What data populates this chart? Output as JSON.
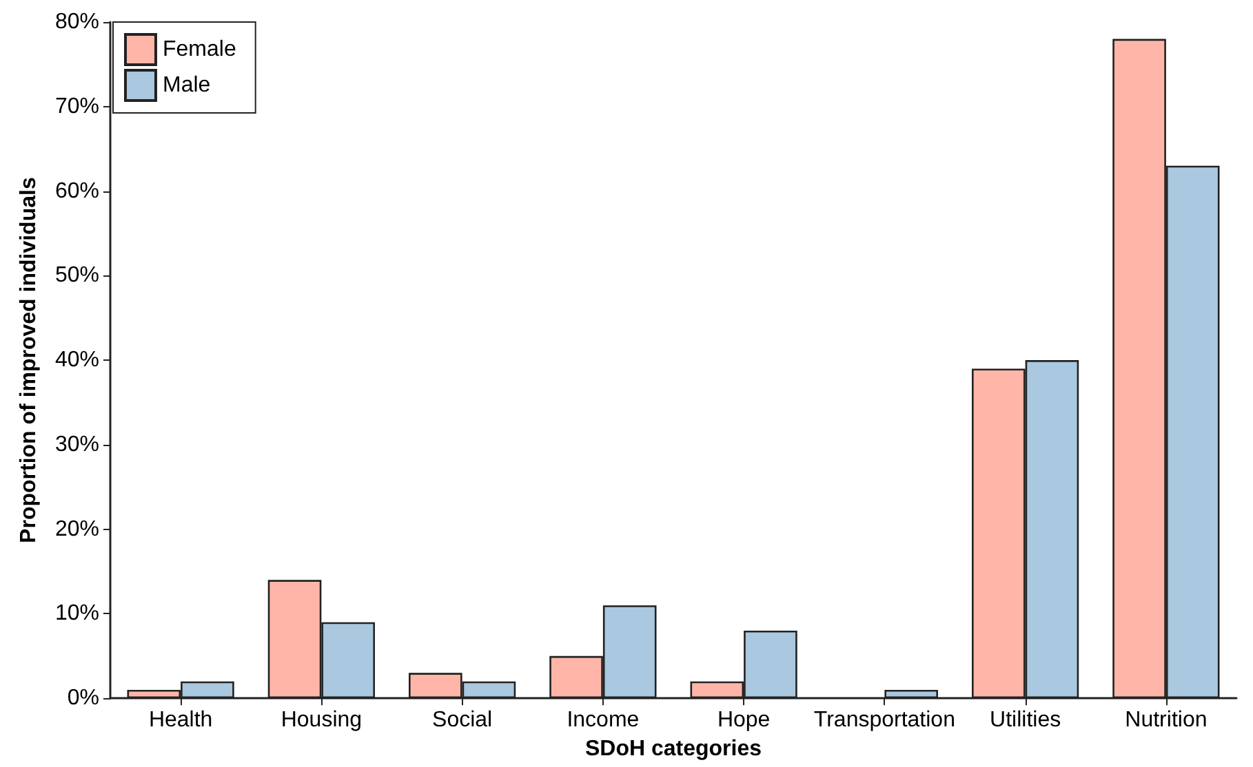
{
  "chart_data": {
    "type": "bar",
    "xlabel": "SDoH categories",
    "ylabel": "Proportion of improved individuals",
    "categories": [
      "Health",
      "Housing",
      "Social",
      "Income",
      "Hope",
      "Transportation",
      "Utilities",
      "Nutrition"
    ],
    "series": [
      {
        "name": "Female",
        "color": "#ffb6a8",
        "values": [
          1,
          14,
          3,
          5,
          2,
          0,
          39,
          78
        ]
      },
      {
        "name": "Male",
        "color": "#aac8df",
        "values": [
          2,
          9,
          2,
          11,
          8,
          1,
          40,
          63
        ]
      }
    ],
    "ylim": [
      0,
      80
    ],
    "yticks": [
      {
        "value": 0,
        "label": "0%"
      },
      {
        "value": 10,
        "label": "10%"
      },
      {
        "value": 20,
        "label": "20%"
      },
      {
        "value": 30,
        "label": "30%"
      },
      {
        "value": 40,
        "label": "40%"
      },
      {
        "value": 50,
        "label": "50%"
      },
      {
        "value": 60,
        "label": "60%"
      },
      {
        "value": 70,
        "label": "70%"
      },
      {
        "value": 80,
        "label": "80%"
      }
    ],
    "grid": false,
    "legend": "top left"
  }
}
